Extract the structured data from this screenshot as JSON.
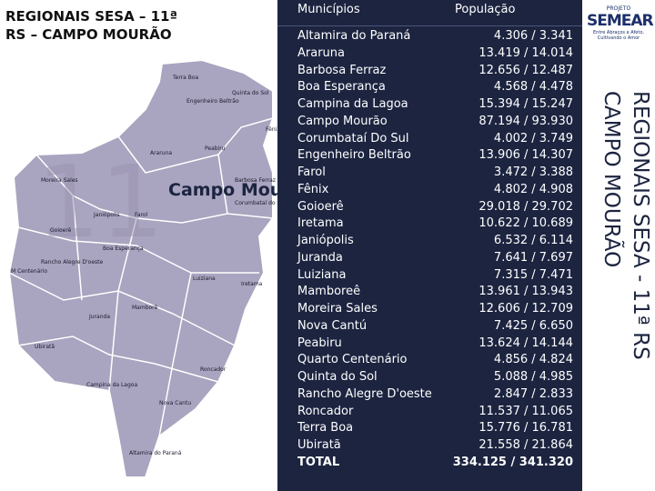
{
  "title": "REGIONAIS SESA – 11ª RS – CAMPO MOURÃO",
  "side_title": {
    "line1": "REGIONAIS SESA - 11ª RS",
    "line2": "CAMPO MOURÃO"
  },
  "logo": {
    "top": "PROJETO",
    "name": "SEMEAR",
    "caption": "Entre Abraços e Afeto, Cultivando o Amor"
  },
  "map": {
    "center_label": "Campo Mourão",
    "labels": [
      "Terra Boa",
      "Engenheiro Beltrão",
      "Quinta do Sol",
      "Fênix",
      "Araruna",
      "Peabiru",
      "Barbosa Ferraz",
      "Moreira Sales",
      "Corumbataí do Sul",
      "Janiópolis",
      "Farol",
      "Goioerê",
      "Boa Esperança",
      "Rancho Alegre D'oeste",
      "M Centenário",
      "Luiziana",
      "Iretama",
      "Juranda",
      "Mamborê",
      "Ubiratã",
      "Roncador",
      "Campina da Lagoa",
      "Nova Cantu",
      "Altamira do Paraná"
    ]
  },
  "table": {
    "header": [
      "Municípios",
      "População"
    ],
    "rows": [
      [
        "Altamira do Paraná",
        "4.306 / 3.341"
      ],
      [
        "Araruna",
        "13.419 / 14.014"
      ],
      [
        "Barbosa Ferraz",
        "12.656 / 12.487"
      ],
      [
        "Boa Esperança",
        "4.568 / 4.478"
      ],
      [
        "Campina da Lagoa",
        "15.394 / 15.247"
      ],
      [
        "Campo Mourão",
        "87.194 / 93.930"
      ],
      [
        "Corumbataí Do Sul",
        "4.002 / 3.749"
      ],
      [
        "Engenheiro Beltrão",
        "13.906 / 14.307"
      ],
      [
        "Farol",
        "3.472 / 3.388"
      ],
      [
        "Fênix",
        "4.802 / 4.908"
      ],
      [
        "Goioerê",
        "29.018 / 29.702"
      ],
      [
        "Iretama",
        "10.622 / 10.689"
      ],
      [
        "Janiópolis",
        "6.532 / 6.114"
      ],
      [
        "Juranda",
        "7.641 / 7.697"
      ],
      [
        "Luiziana",
        "7.315 / 7.471"
      ],
      [
        "Mamboreê",
        "13.961 / 13.943"
      ],
      [
        "Moreira Sales",
        "12.606 / 12.709"
      ],
      [
        "Nova Cantú",
        "7.425 / 6.650"
      ],
      [
        "Peabiru",
        "13.624 / 14.144"
      ],
      [
        "Quarto Centenário",
        "4.856 / 4.824"
      ],
      [
        "Quinta do Sol",
        "5.088 / 4.985"
      ],
      [
        "Rancho Alegre D'oeste",
        "2.847 / 2.833"
      ],
      [
        "Roncador",
        "11.537 / 11.065"
      ],
      [
        "Terra Boa",
        "15.776 / 16.781"
      ],
      [
        "Ubiratã",
        "21.558 / 21.864"
      ],
      [
        "TOTAL",
        "334.125 / 341.320"
      ]
    ]
  }
}
